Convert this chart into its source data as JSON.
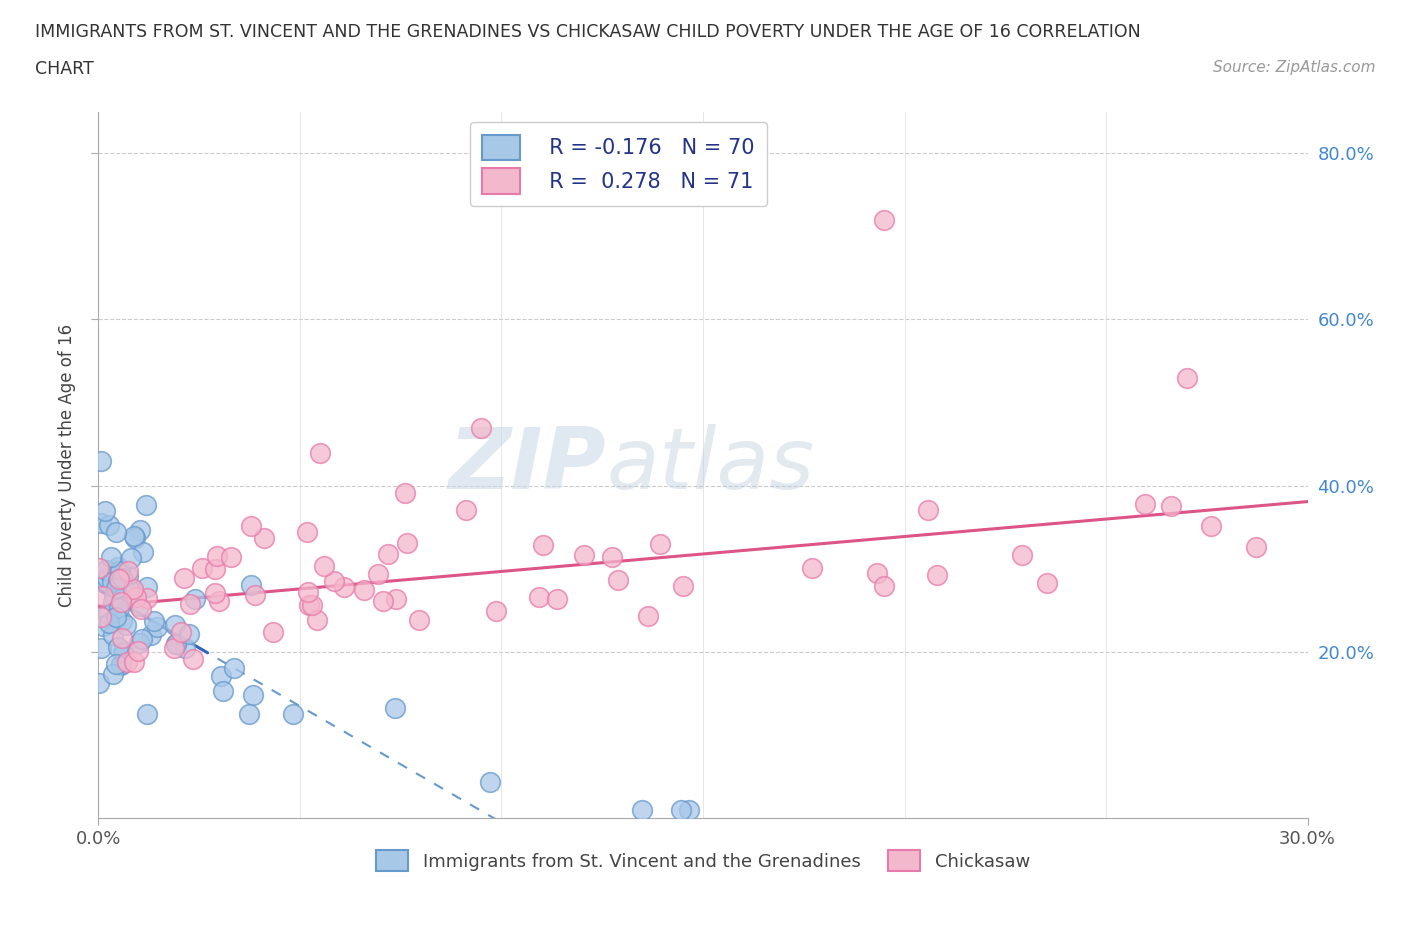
{
  "title_line1": "IMMIGRANTS FROM ST. VINCENT AND THE GRENADINES VS CHICKASAW CHILD POVERTY UNDER THE AGE OF 16 CORRELATION",
  "title_line2": "CHART",
  "source_text": "Source: ZipAtlas.com",
  "ylabel": "Child Poverty Under the Age of 16",
  "xmin": 0.0,
  "xmax": 0.3,
  "ymin": 0.0,
  "ymax": 0.85,
  "x_tick_labels": [
    "0.0%",
    "30.0%"
  ],
  "x_tick_values": [
    0.0,
    0.3
  ],
  "y_tick_labels": [
    "20.0%",
    "40.0%",
    "60.0%",
    "80.0%"
  ],
  "y_tick_values": [
    0.2,
    0.4,
    0.6,
    0.8
  ],
  "color_blue": "#a8c8e8",
  "color_pink": "#f4b8cc",
  "color_blue_edge": "#6699cc",
  "color_pink_edge": "#e87aaa",
  "color_blue_line": "#3366bb",
  "color_pink_line": "#dd5588",
  "color_blue_text": "#3355aa",
  "background_color": "#ffffff",
  "grid_color": "#cccccc",
  "watermark_zip": "ZIP",
  "watermark_atlas": "atlas"
}
